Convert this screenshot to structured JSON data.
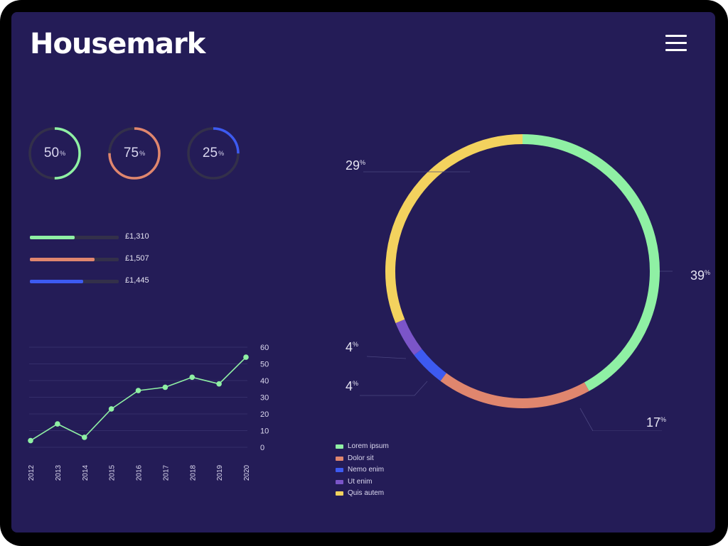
{
  "header": {
    "logo_text": "Housemark",
    "menu_icon": "hamburger-menu-icon"
  },
  "colors": {
    "background": "#241c57",
    "track": "#33304a",
    "green": "#8ff0a4",
    "salmon": "#e0866e",
    "blue": "#3d5af1",
    "purple": "#7b55c9",
    "yellow": "#f3d25e"
  },
  "rings": [
    {
      "value": 50,
      "unit": "%",
      "color": "#8ff0a4"
    },
    {
      "value": 75,
      "unit": "%",
      "color": "#e0866e"
    },
    {
      "value": 25,
      "unit": "%",
      "color": "#3d5af1"
    }
  ],
  "bars": [
    {
      "fill": 0.5,
      "label": "£1,310",
      "color": "#8ff0a4"
    },
    {
      "fill": 0.73,
      "label": "£1,507",
      "color": "#e0866e"
    },
    {
      "fill": 0.6,
      "label": "£1,445",
      "color": "#3d5af1"
    }
  ],
  "chart_data": [
    {
      "type": "line",
      "x": [
        "2012",
        "2013",
        "2014",
        "2015",
        "2016",
        "2017",
        "2018",
        "2019",
        "2020"
      ],
      "series": [
        {
          "values": [
            4,
            14,
            6,
            23,
            34,
            36,
            42,
            38,
            54
          ],
          "color": "#8ff0a4"
        }
      ],
      "ylim": [
        0,
        60
      ],
      "yticks": [
        "0",
        "10",
        "20",
        "30",
        "40",
        "50",
        "60"
      ],
      "y_axis_side": "right",
      "grid": true
    },
    {
      "type": "pie",
      "style": "donut",
      "slices": [
        {
          "label": "Lorem ipsum",
          "value": 39,
          "display": "39",
          "color": "#8ff0a4"
        },
        {
          "label": "Dolor sit",
          "value": 17,
          "display": "17",
          "color": "#e0866e"
        },
        {
          "label": "Nemo enim",
          "value": 4,
          "display": "4",
          "color": "#3d5af1"
        },
        {
          "label": "Ut enim",
          "value": 4,
          "display": "4",
          "color": "#7b55c9"
        },
        {
          "label": "Quis autem",
          "value": 29,
          "display": "29",
          "color": "#f3d25e"
        }
      ],
      "unit": "%",
      "legend_position": "bottom-left"
    }
  ]
}
